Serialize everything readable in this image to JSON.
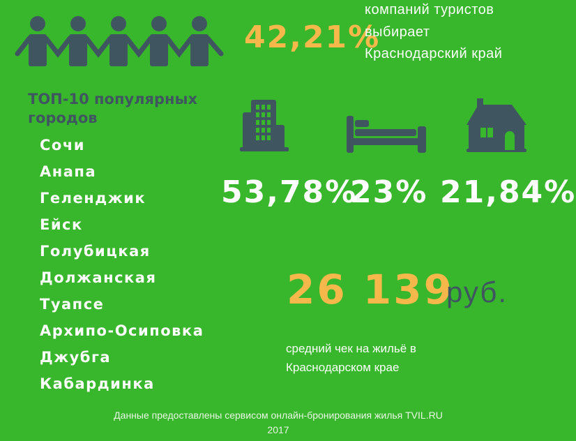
{
  "colors": {
    "background": "#38b72c",
    "icons": "#3f5661",
    "accent": "#f7b84b",
    "text": "#ffffff"
  },
  "intro": {
    "percent": "42,21%",
    "lines": [
      "компаний туристов",
      "выбирает",
      "Краснодарский край"
    ],
    "icon": "people-holding-hands-icon"
  },
  "top_cities": {
    "title_lines": [
      "ТОП-10 популярных",
      "городов"
    ],
    "items": [
      "Сочи",
      "Анапа",
      "Геленджик",
      "Ейск",
      "Голубицкая",
      "Должанская",
      "Туапсе",
      "Архипо-Осиповка",
      "Джубга",
      "Кабардинка"
    ]
  },
  "accommodation": [
    {
      "icon": "hotel-building-icon",
      "percent": "53,78%"
    },
    {
      "icon": "bed-icon",
      "percent": "23%"
    },
    {
      "icon": "house-icon",
      "percent": "21,84%"
    }
  ],
  "average_check": {
    "value": "26 139",
    "currency": "руб.",
    "caption_lines": [
      "средний чек на жильё в",
      "Краснодарском крае"
    ]
  },
  "footer": {
    "source": "Данные предоставлены сервисом онлайн-бронирования жилья TVIL.RU",
    "year": "2017"
  }
}
